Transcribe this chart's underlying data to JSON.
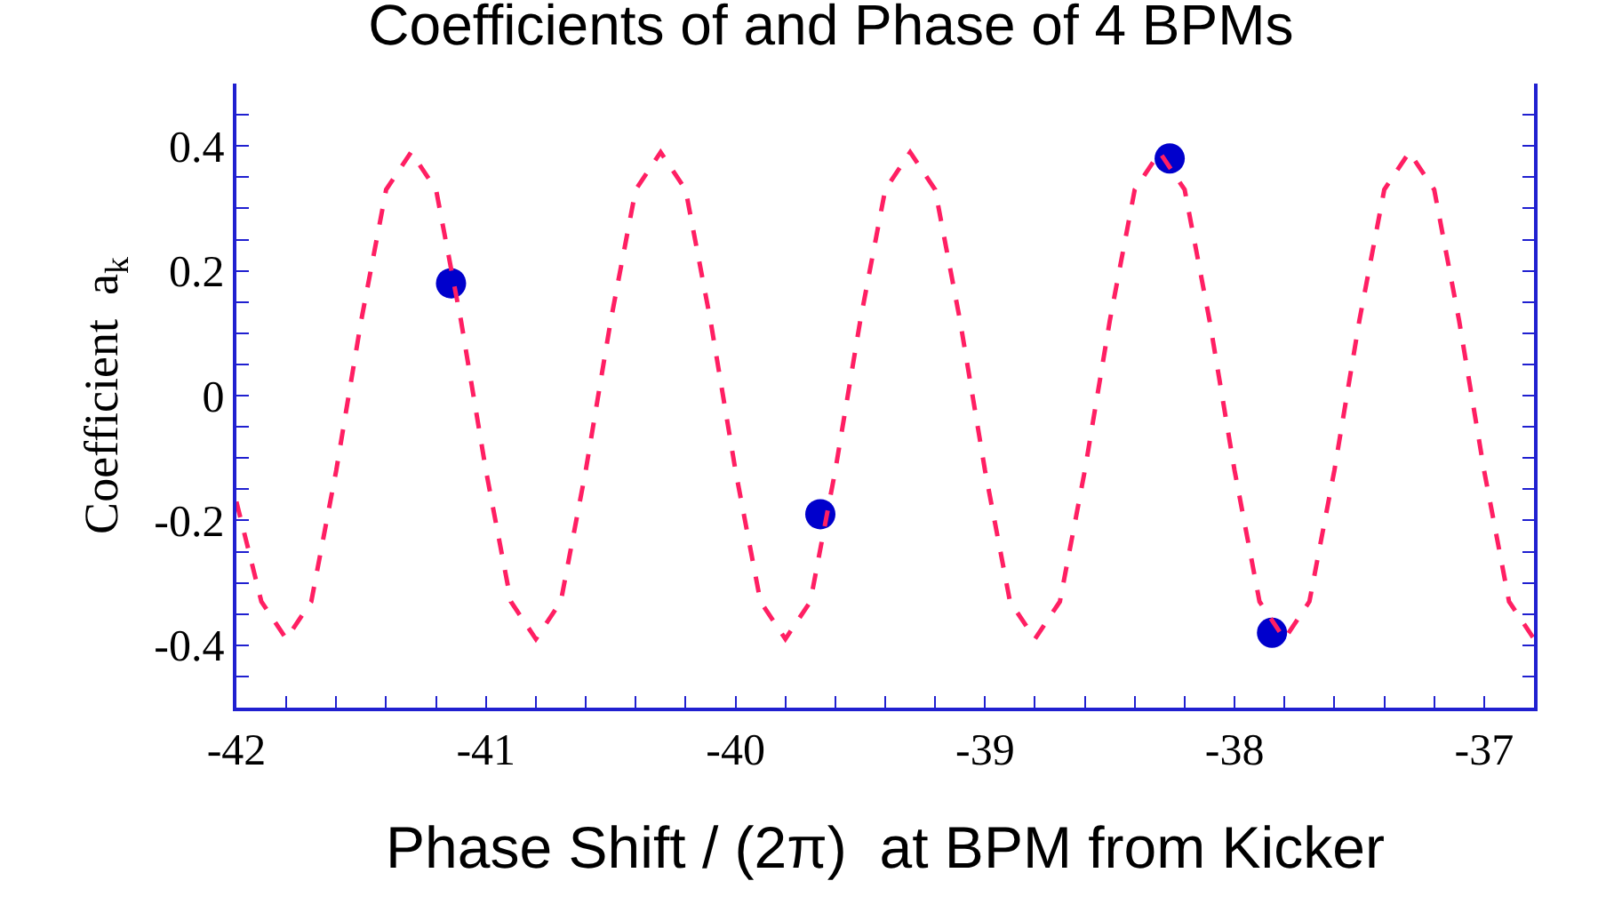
{
  "chart_data": {
    "type": "line",
    "title": "Coefficients of and Phase of 4 BPMs",
    "xlabel": "Phase Shift / (2π)  at BPM from Kicker",
    "ylabel": "Coefficient  a$_{k}$",
    "xlim": [
      -42,
      -36.8
    ],
    "ylim": [
      -0.5,
      0.5
    ],
    "xticks": [
      -42,
      {
        "value": -41.8,
        "label": null
      },
      {
        "value": -41.6,
        "label": null
      },
      {
        "value": -41.4,
        "label": null
      },
      {
        "value": -41.2,
        "label": null
      },
      -41,
      {
        "value": -40.8,
        "label": null
      },
      {
        "value": -40.6,
        "label": null
      },
      {
        "value": -40.4,
        "label": null
      },
      {
        "value": -40.2,
        "label": null
      },
      -40,
      {
        "value": -39.8,
        "label": null
      },
      {
        "value": -39.6,
        "label": null
      },
      {
        "value": -39.4,
        "label": null
      },
      {
        "value": -39.2,
        "label": null
      },
      -39,
      {
        "value": -38.8,
        "label": null
      },
      {
        "value": -38.6,
        "label": null
      },
      {
        "value": -38.4,
        "label": null
      },
      {
        "value": -38.2,
        "label": null
      },
      -38,
      {
        "value": -37.8,
        "label": null
      },
      {
        "value": -37.6,
        "label": null
      },
      {
        "value": -37.4,
        "label": null
      },
      {
        "value": -37.2,
        "label": null
      },
      -37
    ],
    "yticks": [
      {
        "value": -0.45,
        "label": null
      },
      -0.4,
      {
        "value": -0.35,
        "label": null
      },
      {
        "value": -0.3,
        "label": null
      },
      {
        "value": -0.25,
        "label": null
      },
      -0.2,
      {
        "value": -0.15,
        "label": null
      },
      {
        "value": -0.1,
        "label": null
      },
      {
        "value": -0.05,
        "label": null
      },
      0,
      {
        "value": 0.05,
        "label": null
      },
      {
        "value": 0.1,
        "label": null
      },
      {
        "value": 0.15,
        "label": null
      },
      0.2,
      {
        "value": 0.25,
        "label": null
      },
      {
        "value": 0.3,
        "label": null
      },
      {
        "value": 0.35,
        "label": null
      },
      0.4,
      {
        "value": 0.45,
        "label": null
      }
    ],
    "series": [
      {
        "type": "line",
        "color": "#ff1f63",
        "line_style": "dashed",
        "marker": "none",
        "x": [
          -42,
          -41.9,
          -41.8,
          -41.7,
          -41.6,
          -41.5,
          -41.4,
          -41.3,
          -41.2,
          -41.1,
          -41,
          -40.9,
          -40.8,
          -40.7,
          -40.6,
          -40.5,
          -40.4,
          -40.3,
          -40.2,
          -40.1,
          -40,
          -39.9,
          -39.8,
          -39.7,
          -39.6,
          -39.5,
          -39.4,
          -39.3,
          -39.2,
          -39.1,
          -39,
          -38.9,
          -38.8,
          -38.7,
          -38.6,
          -38.5,
          -38.4,
          -38.3,
          -38.2,
          -38.1,
          -38,
          -37.9,
          -37.8,
          -37.7,
          -37.6,
          -37.5,
          -37.4,
          -37.3,
          -37.2,
          -37.1,
          -37,
          -36.9,
          -36.8
        ],
        "values": [
          -0.17,
          -0.33,
          -0.39,
          -0.33,
          -0.12,
          0.12,
          0.33,
          0.39,
          0.33,
          0.12,
          -0.12,
          -0.33,
          -0.39,
          -0.33,
          -0.12,
          0.12,
          0.33,
          0.39,
          0.33,
          0.12,
          -0.12,
          -0.33,
          -0.39,
          -0.33,
          -0.12,
          0.12,
          0.33,
          0.39,
          0.33,
          0.12,
          -0.12,
          -0.33,
          -0.39,
          -0.33,
          -0.12,
          0.12,
          0.33,
          0.39,
          0.33,
          0.12,
          -0.12,
          -0.33,
          -0.39,
          -0.33,
          -0.12,
          0.12,
          0.33,
          0.39,
          0.33,
          0.12,
          -0.12,
          -0.33,
          -0.39
        ]
      },
      {
        "type": "scatter",
        "color": "#0000cc",
        "marker": "circle",
        "x": [
          -41.14,
          -39.66,
          -38.26,
          -37.85
        ],
        "values": [
          0.18,
          -0.19,
          0.38,
          -0.38
        ]
      }
    ]
  }
}
